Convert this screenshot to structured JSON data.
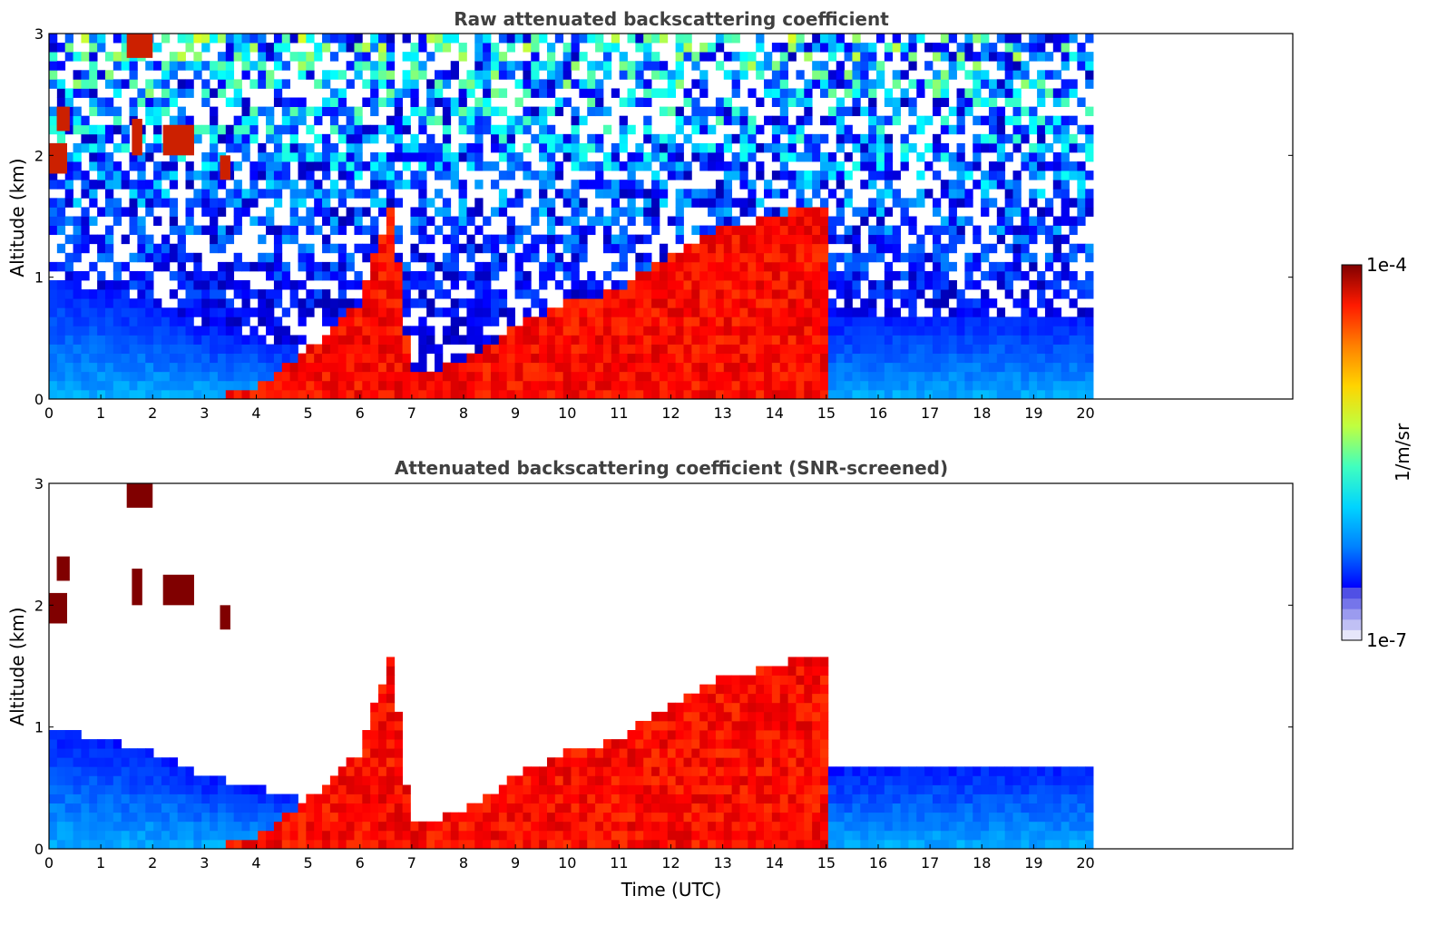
{
  "chart_data": [
    {
      "type": "heatmap",
      "title": "Raw attenuated backscattering coefficient",
      "xlabel": "",
      "ylabel": "Altitude (km)",
      "xlim": [
        0,
        24
      ],
      "ylim": [
        0,
        3
      ],
      "x_ticks": [
        "0",
        "1",
        "2",
        "3",
        "4",
        "5",
        "6",
        "7",
        "8",
        "9",
        "10",
        "11",
        "12",
        "13",
        "14",
        "15",
        "16",
        "17",
        "18",
        "19",
        "20"
      ],
      "y_ticks": [
        "0",
        "1",
        "2",
        "3"
      ],
      "data_end_time": 20.15,
      "boundary_layer_top_km": [
        {
          "t": 0,
          "h": 1.0
        },
        {
          "t": 2,
          "h": 0.8
        },
        {
          "t": 3,
          "h": 0.6
        },
        {
          "t": 5,
          "h": 0.4
        },
        {
          "t": 8,
          "h": 0.15
        },
        {
          "t": 10,
          "h": 0.3
        },
        {
          "t": 13,
          "h": 0.5
        },
        {
          "t": 16,
          "h": 0.7
        },
        {
          "t": 20,
          "h": 0.7
        }
      ],
      "aerosol_layer_tops_km": [
        {
          "t": 4,
          "h": 0.1
        },
        {
          "t": 5,
          "h": 0.4
        },
        {
          "t": 6,
          "h": 0.8
        },
        {
          "t": 6.6,
          "h": 1.6
        },
        {
          "t": 7,
          "h": 0.2
        },
        {
          "t": 8,
          "h": 0.3
        },
        {
          "t": 9,
          "h": 0.6
        },
        {
          "t": 10,
          "h": 0.8
        },
        {
          "t": 11,
          "h": 0.9
        },
        {
          "t": 12,
          "h": 1.2
        },
        {
          "t": 13,
          "h": 1.4
        },
        {
          "t": 14,
          "h": 1.5
        },
        {
          "t": 14.6,
          "h": 1.6
        }
      ],
      "elevated_clouds": [
        {
          "t0": 0.0,
          "t1": 0.35,
          "h0": 1.85,
          "h1": 2.1
        },
        {
          "t0": 0.15,
          "t1": 0.4,
          "h0": 2.2,
          "h1": 2.4
        },
        {
          "t0": 1.5,
          "t1": 2.0,
          "h0": 2.8,
          "h1": 3.0
        },
        {
          "t0": 1.6,
          "t1": 1.8,
          "h0": 2.0,
          "h1": 2.3
        },
        {
          "t0": 2.2,
          "t1": 2.8,
          "h0": 2.0,
          "h1": 2.25
        },
        {
          "t0": 3.3,
          "t1": 3.5,
          "h0": 1.8,
          "h1": 2.0
        }
      ],
      "screened": false
    },
    {
      "type": "heatmap",
      "title": "Attenuated backscattering coefficient (SNR-screened)",
      "xlabel": "Time (UTC)",
      "ylabel": "Altitude (km)",
      "xlim": [
        0,
        24
      ],
      "ylim": [
        0,
        3
      ],
      "x_ticks": [
        "0",
        "1",
        "2",
        "3",
        "4",
        "5",
        "6",
        "7",
        "8",
        "9",
        "10",
        "11",
        "12",
        "13",
        "14",
        "15",
        "16",
        "17",
        "18",
        "19",
        "20"
      ],
      "y_ticks": [
        "0",
        "1",
        "2",
        "3"
      ],
      "data_end_time": 20.15,
      "screened": true
    }
  ],
  "colorbar": {
    "label": "1/m/sr",
    "max_label": "1e-4",
    "min_label": "1e-7",
    "scale": "log",
    "colormap": "jet",
    "low_colors": [
      "#e6e6fa",
      "#c0c0f4",
      "#9b9bef",
      "#7575ea",
      "#5050e5"
    ],
    "stops": [
      "#0000ff",
      "#0080ff",
      "#00d4ff",
      "#40ffbf",
      "#bfff40",
      "#ffd400",
      "#ff8000",
      "#ff1a00",
      "#800000"
    ]
  }
}
